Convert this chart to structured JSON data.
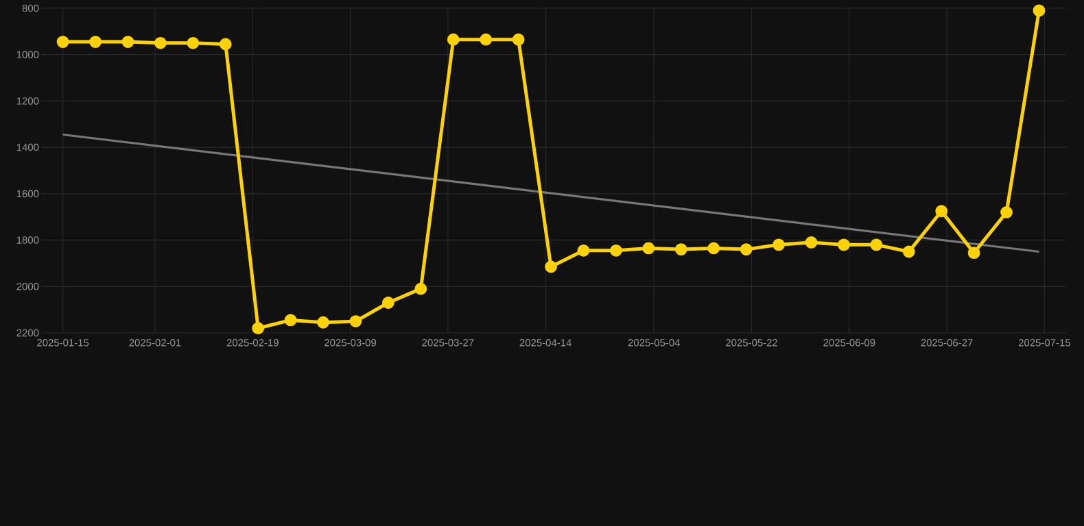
{
  "chart_data": {
    "type": "line",
    "grid": true,
    "marker": "circle",
    "xlim": [
      "2025-01-11",
      "2025-07-19"
    ],
    "xticks": [
      {
        "value": "2025-01-15",
        "label": "2025-01-15"
      },
      {
        "value": "2025-02-01",
        "label": "2025-02-01"
      },
      {
        "value": "2025-02-19",
        "label": "2025-02-19"
      },
      {
        "value": "2025-03-09",
        "label": "2025-03-09"
      },
      {
        "value": "2025-03-27",
        "label": "2025-03-27"
      },
      {
        "value": "2025-04-14",
        "label": "2025-04-14"
      },
      {
        "value": "2025-05-04",
        "label": "2025-05-04"
      },
      {
        "value": "2025-05-22",
        "label": "2025-05-22"
      },
      {
        "value": "2025-06-09",
        "label": "2025-06-09"
      },
      {
        "value": "2025-06-27",
        "label": "2025-06-27"
      },
      {
        "value": "2025-07-15",
        "label": "2025-07-15"
      }
    ],
    "ylim": [
      2200,
      800
    ],
    "yticks": [
      800,
      1000,
      1200,
      1400,
      1600,
      1800,
      2000,
      2200
    ],
    "series": [
      {
        "type": "line",
        "color": "#777777",
        "marker": "none",
        "x": [
          "2025-01-15",
          "2025-07-14"
        ],
        "values": [
          1345,
          1850
        ]
      },
      {
        "color": "#ffd200",
        "x": [
          "2025-01-15",
          "2025-01-21",
          "2025-01-27",
          "2025-02-02",
          "2025-02-08",
          "2025-02-14",
          "2025-02-20",
          "2025-02-26",
          "2025-03-04",
          "2025-03-10",
          "2025-03-16",
          "2025-03-22",
          "2025-03-28",
          "2025-04-03",
          "2025-04-09",
          "2025-04-15",
          "2025-04-21",
          "2025-04-27",
          "2025-05-03",
          "2025-05-09",
          "2025-05-15",
          "2025-05-21",
          "2025-05-27",
          "2025-06-02",
          "2025-06-08",
          "2025-06-14",
          "2025-06-20",
          "2025-06-26",
          "2025-07-02",
          "2025-07-08",
          "2025-07-14"
        ],
        "values": [
          945,
          945,
          945,
          950,
          950,
          955,
          2180,
          2145,
          2155,
          2150,
          2070,
          2010,
          935,
          935,
          935,
          1915,
          1845,
          1845,
          1835,
          1840,
          1835,
          1840,
          1820,
          1810,
          1820,
          1820,
          1850,
          1675,
          1855,
          1680,
          810
        ]
      }
    ]
  }
}
